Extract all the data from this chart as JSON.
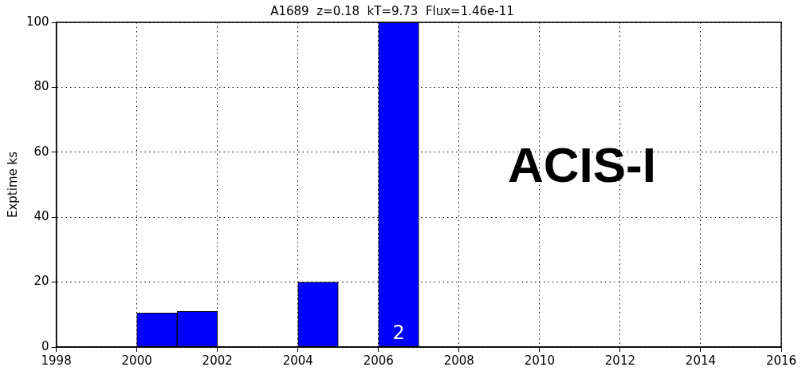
{
  "chart_data": {
    "type": "histogram",
    "title": "A1689  z=0.18  kT=9.73  Flux=1.46e-11",
    "ylabel": "Exptime ks",
    "bins": [
      2000,
      2001,
      2002,
      2003,
      2004,
      2005,
      2006,
      2007
    ],
    "values": [
      10.5,
      11,
      0,
      0,
      20,
      0,
      100
    ],
    "color": "#0000ff",
    "xlim": [
      1998,
      2016
    ],
    "xticks": [
      1998,
      2000,
      2002,
      2004,
      2006,
      2008,
      2010,
      2012,
      2014,
      2016
    ],
    "ylim": [
      0,
      100
    ],
    "yticks": [
      0,
      20,
      40,
      60,
      80,
      100
    ],
    "grid": true,
    "annotations": [
      {
        "text": "2",
        "x": 2006.5,
        "y": 1
      },
      "ACIS-I"
    ]
  }
}
